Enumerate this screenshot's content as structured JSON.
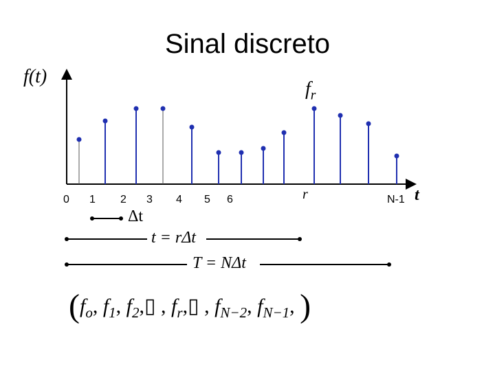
{
  "title": "Sinal discreto",
  "axis": {
    "ylabel": "f(t)",
    "xlabel": "t"
  },
  "tick_labels": [
    "0",
    "1",
    "2",
    "3",
    "4",
    "5",
    "6",
    "r",
    "N-1"
  ],
  "samples": [
    0.65,
    0.92,
    1.1,
    1.1,
    0.83,
    0.46,
    0.46,
    0.52,
    0.75,
    1.1,
    1.0,
    0.88,
    0.41
  ],
  "annotations": {
    "fr": "f",
    "fr_sub": "r",
    "delta_t": "Δt",
    "t_eq": "t = rΔt",
    "T_eq": "T = NΔt"
  },
  "sequence": {
    "open": "(",
    "items": [
      {
        "f": "f",
        "sub": "o",
        "sep": ","
      },
      {
        "f": "f",
        "sub": "1",
        "sep": ","
      },
      {
        "f": "f",
        "sub": "2",
        "sep": ",▯"
      },
      {
        "f": "",
        "sub": "",
        "sep": ", "
      },
      {
        "f": "f",
        "sub": "r",
        "sep": ",▯"
      },
      {
        "f": "",
        "sub": "",
        "sep": ", "
      },
      {
        "f": "f",
        "sub": "N−2",
        "sep": ","
      },
      {
        "f": "f",
        "sub": "N−1",
        "sep": ","
      }
    ],
    "close": ")"
  },
  "colors": {
    "stem": "#1f2fb0",
    "stem_gray": "#555555",
    "axis": "#000000"
  }
}
